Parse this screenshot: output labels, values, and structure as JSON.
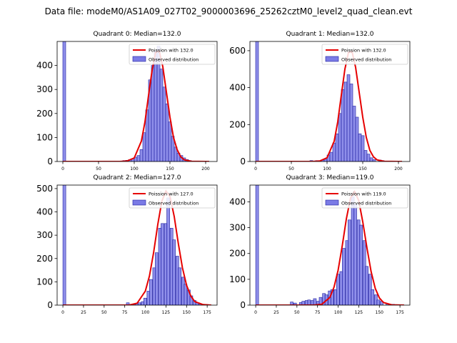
{
  "figure": {
    "suptitle": "Data file: modeM0/AS1A09_027T02_9000003696_25262cztM0_level2_quad_clean.evt"
  },
  "legend": {
    "observed_label": "Observed distribution"
  },
  "colors": {
    "bar_fill": "#7b7be6",
    "bar_edge": "#1f1f9f",
    "poisson_line": "#e60000"
  },
  "chart_data": [
    {
      "type": "bar",
      "title": "Quadrant 0: Median=132.0",
      "median": 132.0,
      "poisson_label": "Poission with 132.0",
      "xlim": [
        -8,
        216
      ],
      "ylim": [
        0,
        500
      ],
      "xticks": [
        0,
        50,
        100,
        150,
        200
      ],
      "yticks": [
        0,
        100,
        200,
        300,
        400
      ],
      "bin_width": 4,
      "bins": [
        [
          0,
          500
        ],
        [
          80,
          2
        ],
        [
          84,
          4
        ],
        [
          88,
          5
        ],
        [
          92,
          8
        ],
        [
          96,
          12
        ],
        [
          100,
          18
        ],
        [
          104,
          25
        ],
        [
          108,
          50
        ],
        [
          112,
          120
        ],
        [
          116,
          215
        ],
        [
          120,
          340
        ],
        [
          124,
          400
        ],
        [
          128,
          460
        ],
        [
          132,
          480
        ],
        [
          136,
          385
        ],
        [
          140,
          310
        ],
        [
          144,
          240
        ],
        [
          148,
          165
        ],
        [
          152,
          105
        ],
        [
          156,
          60
        ],
        [
          160,
          35
        ],
        [
          164,
          25
        ],
        [
          168,
          15
        ],
        [
          172,
          8
        ],
        [
          176,
          4
        ],
        [
          180,
          2
        ]
      ],
      "poisson": [
        [
          0,
          0
        ],
        [
          80,
          0
        ],
        [
          90,
          2
        ],
        [
          100,
          15
        ],
        [
          110,
          85
        ],
        [
          115,
          165
        ],
        [
          120,
          275
        ],
        [
          125,
          380
        ],
        [
          130,
          455
        ],
        [
          135,
          460
        ],
        [
          140,
          395
        ],
        [
          145,
          290
        ],
        [
          150,
          185
        ],
        [
          155,
          100
        ],
        [
          160,
          50
        ],
        [
          165,
          20
        ],
        [
          170,
          7
        ],
        [
          180,
          1
        ],
        [
          200,
          0
        ],
        [
          205,
          0
        ]
      ]
    },
    {
      "type": "bar",
      "title": "Quadrant 1: Median=132.0",
      "median": 132.0,
      "poisson_label": "Poission with 132.0",
      "xlim": [
        -8,
        216
      ],
      "ylim": [
        0,
        650
      ],
      "xticks": [
        0,
        50,
        100,
        150,
        200
      ],
      "yticks": [
        0,
        200,
        400,
        600
      ],
      "bin_width": 4,
      "bins": [
        [
          0,
          650
        ],
        [
          76,
          5
        ],
        [
          80,
          3
        ],
        [
          84,
          5
        ],
        [
          92,
          8
        ],
        [
          96,
          12
        ],
        [
          100,
          35
        ],
        [
          104,
          50
        ],
        [
          108,
          100
        ],
        [
          112,
          150
        ],
        [
          116,
          260
        ],
        [
          120,
          390
        ],
        [
          124,
          430
        ],
        [
          128,
          470
        ],
        [
          132,
          420
        ],
        [
          136,
          300
        ],
        [
          140,
          240
        ],
        [
          144,
          150
        ],
        [
          148,
          140
        ],
        [
          152,
          60
        ],
        [
          156,
          40
        ],
        [
          160,
          20
        ],
        [
          164,
          10
        ],
        [
          172,
          8
        ],
        [
          176,
          5
        ]
      ],
      "poisson": [
        [
          0,
          0
        ],
        [
          80,
          0
        ],
        [
          90,
          3
        ],
        [
          100,
          20
        ],
        [
          110,
          110
        ],
        [
          115,
          215
        ],
        [
          120,
          360
        ],
        [
          125,
          500
        ],
        [
          130,
          590
        ],
        [
          135,
          595
        ],
        [
          140,
          510
        ],
        [
          145,
          375
        ],
        [
          150,
          240
        ],
        [
          155,
          130
        ],
        [
          160,
          60
        ],
        [
          165,
          25
        ],
        [
          170,
          9
        ],
        [
          180,
          1
        ],
        [
          200,
          0
        ],
        [
          205,
          0
        ]
      ]
    },
    {
      "type": "bar",
      "title": "Quadrant 2: Median=127.0",
      "median": 127.0,
      "poisson_label": "Poission with 127.0",
      "xlim": [
        -7,
        187
      ],
      "ylim": [
        0,
        515
      ],
      "xticks": [
        0,
        25,
        50,
        75,
        100,
        125,
        150,
        175
      ],
      "yticks": [
        0,
        100,
        200,
        300,
        400,
        500
      ],
      "bin_width": 3.5,
      "bins": [
        [
          0,
          515
        ],
        [
          77,
          10
        ],
        [
          84,
          5
        ],
        [
          88,
          8
        ],
        [
          91,
          10
        ],
        [
          95,
          15
        ],
        [
          98,
          30
        ],
        [
          102,
          60
        ],
        [
          105,
          110
        ],
        [
          109,
          160
        ],
        [
          112,
          225
        ],
        [
          116,
          330
        ],
        [
          119,
          350
        ],
        [
          123,
          350
        ],
        [
          126,
          460
        ],
        [
          130,
          330
        ],
        [
          133,
          280
        ],
        [
          137,
          210
        ],
        [
          140,
          160
        ],
        [
          144,
          120
        ],
        [
          147,
          90
        ],
        [
          151,
          65
        ],
        [
          154,
          40
        ],
        [
          158,
          20
        ],
        [
          161,
          10
        ],
        [
          165,
          5
        ],
        [
          172,
          3
        ]
      ],
      "poisson": [
        [
          0,
          0
        ],
        [
          80,
          0
        ],
        [
          90,
          8
        ],
        [
          100,
          60
        ],
        [
          105,
          125
        ],
        [
          110,
          225
        ],
        [
          115,
          345
        ],
        [
          120,
          445
        ],
        [
          125,
          490
        ],
        [
          130,
          465
        ],
        [
          135,
          380
        ],
        [
          140,
          265
        ],
        [
          145,
          160
        ],
        [
          150,
          85
        ],
        [
          155,
          40
        ],
        [
          160,
          15
        ],
        [
          170,
          2
        ],
        [
          180,
          0
        ]
      ]
    },
    {
      "type": "bar",
      "title": "Quadrant 3: Median=119.0",
      "median": 119.0,
      "poisson_label": "Poission with 119.0",
      "xlim": [
        -7,
        187
      ],
      "ylim": [
        0,
        465
      ],
      "xticks": [
        0,
        25,
        50,
        75,
        100,
        125,
        150,
        175
      ],
      "yticks": [
        0,
        100,
        200,
        300,
        400
      ],
      "bin_width": 3.5,
      "bins": [
        [
          0,
          465
        ],
        [
          42,
          12
        ],
        [
          46,
          8
        ],
        [
          53,
          10
        ],
        [
          56,
          15
        ],
        [
          60,
          18
        ],
        [
          63,
          20
        ],
        [
          67,
          18
        ],
        [
          70,
          25
        ],
        [
          74,
          15
        ],
        [
          77,
          30
        ],
        [
          81,
          45
        ],
        [
          84,
          40
        ],
        [
          88,
          55
        ],
        [
          91,
          60
        ],
        [
          95,
          60
        ],
        [
          98,
          120
        ],
        [
          102,
          130
        ],
        [
          105,
          220
        ],
        [
          109,
          250
        ],
        [
          112,
          330
        ],
        [
          116,
          420
        ],
        [
          119,
          390
        ],
        [
          123,
          330
        ],
        [
          126,
          310
        ],
        [
          130,
          250
        ],
        [
          133,
          150
        ],
        [
          137,
          120
        ],
        [
          140,
          60
        ],
        [
          144,
          40
        ],
        [
          147,
          20
        ],
        [
          151,
          15
        ],
        [
          158,
          5
        ],
        [
          165,
          3
        ]
      ],
      "poisson": [
        [
          0,
          0
        ],
        [
          70,
          0
        ],
        [
          80,
          3
        ],
        [
          90,
          30
        ],
        [
          95,
          70
        ],
        [
          100,
          135
        ],
        [
          105,
          230
        ],
        [
          110,
          335
        ],
        [
          115,
          415
        ],
        [
          120,
          440
        ],
        [
          125,
          405
        ],
        [
          130,
          320
        ],
        [
          135,
          220
        ],
        [
          140,
          130
        ],
        [
          145,
          65
        ],
        [
          150,
          28
        ],
        [
          155,
          10
        ],
        [
          165,
          1
        ],
        [
          180,
          0
        ]
      ]
    }
  ]
}
